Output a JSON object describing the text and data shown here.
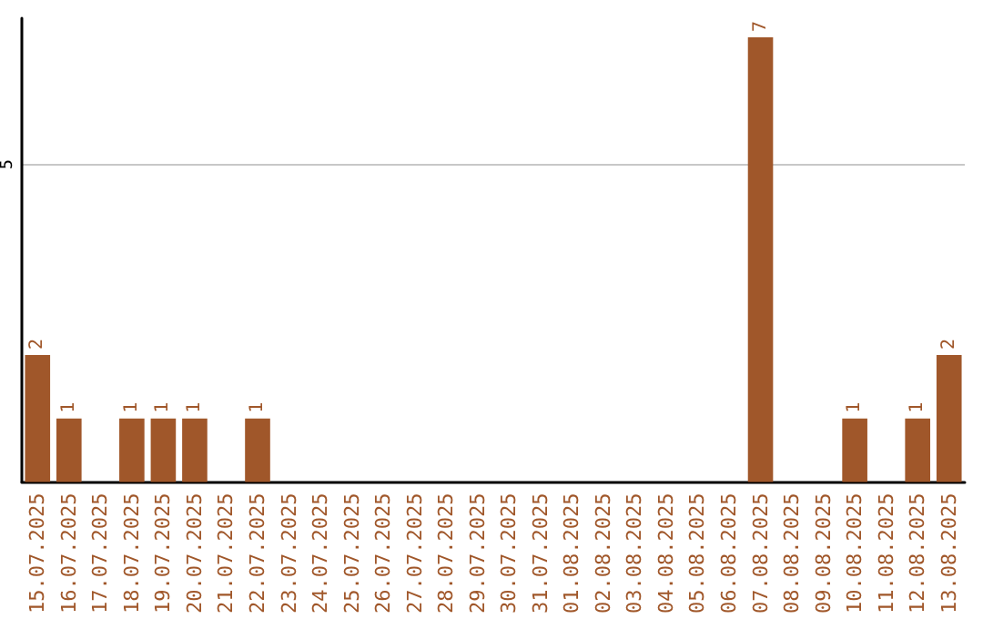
{
  "chart_data": {
    "type": "bar",
    "categories": [
      "15.07.2025",
      "16.07.2025",
      "17.07.2025",
      "18.07.2025",
      "19.07.2025",
      "20.07.2025",
      "21.07.2025",
      "22.07.2025",
      "23.07.2025",
      "24.07.2025",
      "25.07.2025",
      "26.07.2025",
      "27.07.2025",
      "28.07.2025",
      "29.07.2025",
      "30.07.2025",
      "31.07.2025",
      "01.08.2025",
      "02.08.2025",
      "03.08.2025",
      "04.08.2025",
      "05.08.2025",
      "06.08.2025",
      "07.08.2025",
      "08.08.2025",
      "09.08.2025",
      "10.08.2025",
      "11.08.2025",
      "12.08.2025",
      "13.08.2025"
    ],
    "values": [
      2,
      1,
      0,
      1,
      1,
      1,
      0,
      1,
      0,
      0,
      0,
      0,
      0,
      0,
      0,
      0,
      0,
      0,
      0,
      0,
      0,
      0,
      0,
      7,
      0,
      0,
      1,
      0,
      1,
      2
    ],
    "value_labels": [
      "2",
      "1",
      null,
      "1",
      "1",
      "1",
      null,
      "1",
      null,
      null,
      null,
      null,
      null,
      null,
      null,
      null,
      null,
      null,
      null,
      null,
      null,
      null,
      null,
      "7",
      null,
      null,
      "1",
      null,
      "1",
      "2"
    ],
    "color": "#a0572a",
    "ylim": [
      0,
      7.3
    ],
    "yticks": [
      5
    ],
    "grid": "y"
  }
}
